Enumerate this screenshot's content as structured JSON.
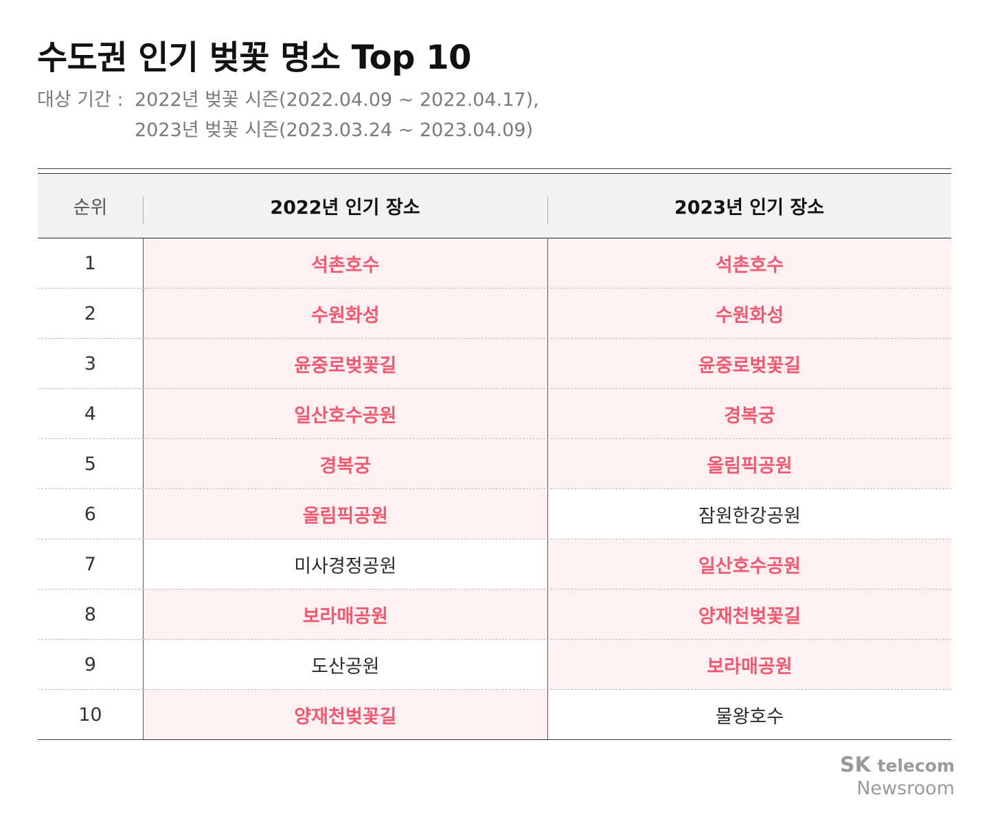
{
  "title": "수도권 인기 벚꽃 명소 Top 10",
  "period": {
    "label": "대상 기간 :",
    "line1": "2022년 벚꽃 시즌(2022.04.09 ~ 2022.04.17),",
    "line2": "2023년 벚꽃 시즌(2023.03.24 ~ 2023.04.09)"
  },
  "colors": {
    "highlight_text": "#ef5a71",
    "highlight_bg": "#fff0f1",
    "header_bg": "#f2f2f2"
  },
  "chart_data": {
    "type": "table",
    "columns": [
      "순위",
      "2022년 인기 장소",
      "2023년 인기 장소"
    ],
    "rows": [
      {
        "rank": "1",
        "y2022": "석촌호수",
        "y2022_hl": true,
        "y2023": "석촌호수",
        "y2023_hl": true
      },
      {
        "rank": "2",
        "y2022": "수원화성",
        "y2022_hl": true,
        "y2023": "수원화성",
        "y2023_hl": true
      },
      {
        "rank": "3",
        "y2022": "윤중로벚꽃길",
        "y2022_hl": true,
        "y2023": "윤중로벚꽃길",
        "y2023_hl": true
      },
      {
        "rank": "4",
        "y2022": "일산호수공원",
        "y2022_hl": true,
        "y2023": "경복궁",
        "y2023_hl": true
      },
      {
        "rank": "5",
        "y2022": "경복궁",
        "y2022_hl": true,
        "y2023": "올림픽공원",
        "y2023_hl": true
      },
      {
        "rank": "6",
        "y2022": "올림픽공원",
        "y2022_hl": true,
        "y2023": "잠원한강공원",
        "y2023_hl": false
      },
      {
        "rank": "7",
        "y2022": "미사경정공원",
        "y2022_hl": false,
        "y2023": "일산호수공원",
        "y2023_hl": true
      },
      {
        "rank": "8",
        "y2022": "보라매공원",
        "y2022_hl": true,
        "y2023": "양재천벚꽃길",
        "y2023_hl": true
      },
      {
        "rank": "9",
        "y2022": "도산공원",
        "y2022_hl": false,
        "y2023": "보라매공원",
        "y2023_hl": true
      },
      {
        "rank": "10",
        "y2022": "양재천벚꽃길",
        "y2022_hl": true,
        "y2023": "물왕호수",
        "y2023_hl": false
      }
    ]
  },
  "logo": {
    "brand_sk": "SK",
    "brand_rest": "telecom",
    "sub": "Newsroom"
  }
}
